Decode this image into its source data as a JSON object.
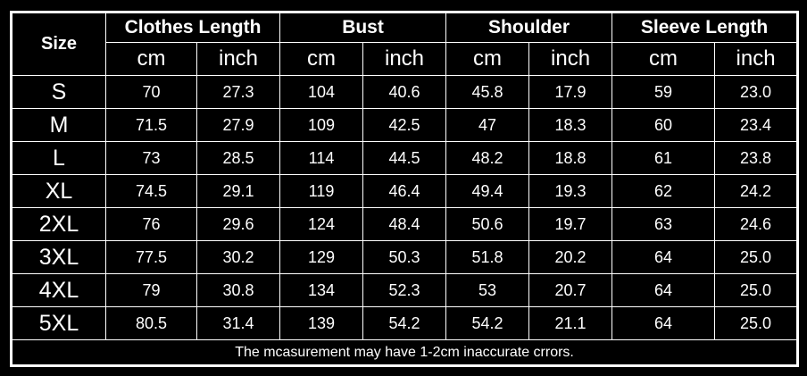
{
  "table": {
    "size_header": "Size",
    "groups": [
      "Clothes Length",
      "Bust",
      "Shoulder",
      "Sleeve Length"
    ],
    "units": [
      "cm",
      "inch"
    ],
    "rows": [
      {
        "size": "S",
        "values": [
          "70",
          "27.3",
          "104",
          "40.6",
          "45.8",
          "17.9",
          "59",
          "23.0"
        ]
      },
      {
        "size": "M",
        "values": [
          "71.5",
          "27.9",
          "109",
          "42.5",
          "47",
          "18.3",
          "60",
          "23.4"
        ]
      },
      {
        "size": "L",
        "values": [
          "73",
          "28.5",
          "114",
          "44.5",
          "48.2",
          "18.8",
          "61",
          "23.8"
        ]
      },
      {
        "size": "XL",
        "values": [
          "74.5",
          "29.1",
          "119",
          "46.4",
          "49.4",
          "19.3",
          "62",
          "24.2"
        ]
      },
      {
        "size": "2XL",
        "values": [
          "76",
          "29.6",
          "124",
          "48.4",
          "50.6",
          "19.7",
          "63",
          "24.6"
        ]
      },
      {
        "size": "3XL",
        "values": [
          "77.5",
          "30.2",
          "129",
          "50.3",
          "51.8",
          "20.2",
          "64",
          "25.0"
        ]
      },
      {
        "size": "4XL",
        "values": [
          "79",
          "30.8",
          "134",
          "52.3",
          "53",
          "20.7",
          "64",
          "25.0"
        ]
      },
      {
        "size": "5XL",
        "values": [
          "80.5",
          "31.4",
          "139",
          "54.2",
          "54.2",
          "21.1",
          "64",
          "25.0"
        ]
      }
    ],
    "footnote": "The mcasurement may have 1-2cm inaccurate crrors."
  }
}
